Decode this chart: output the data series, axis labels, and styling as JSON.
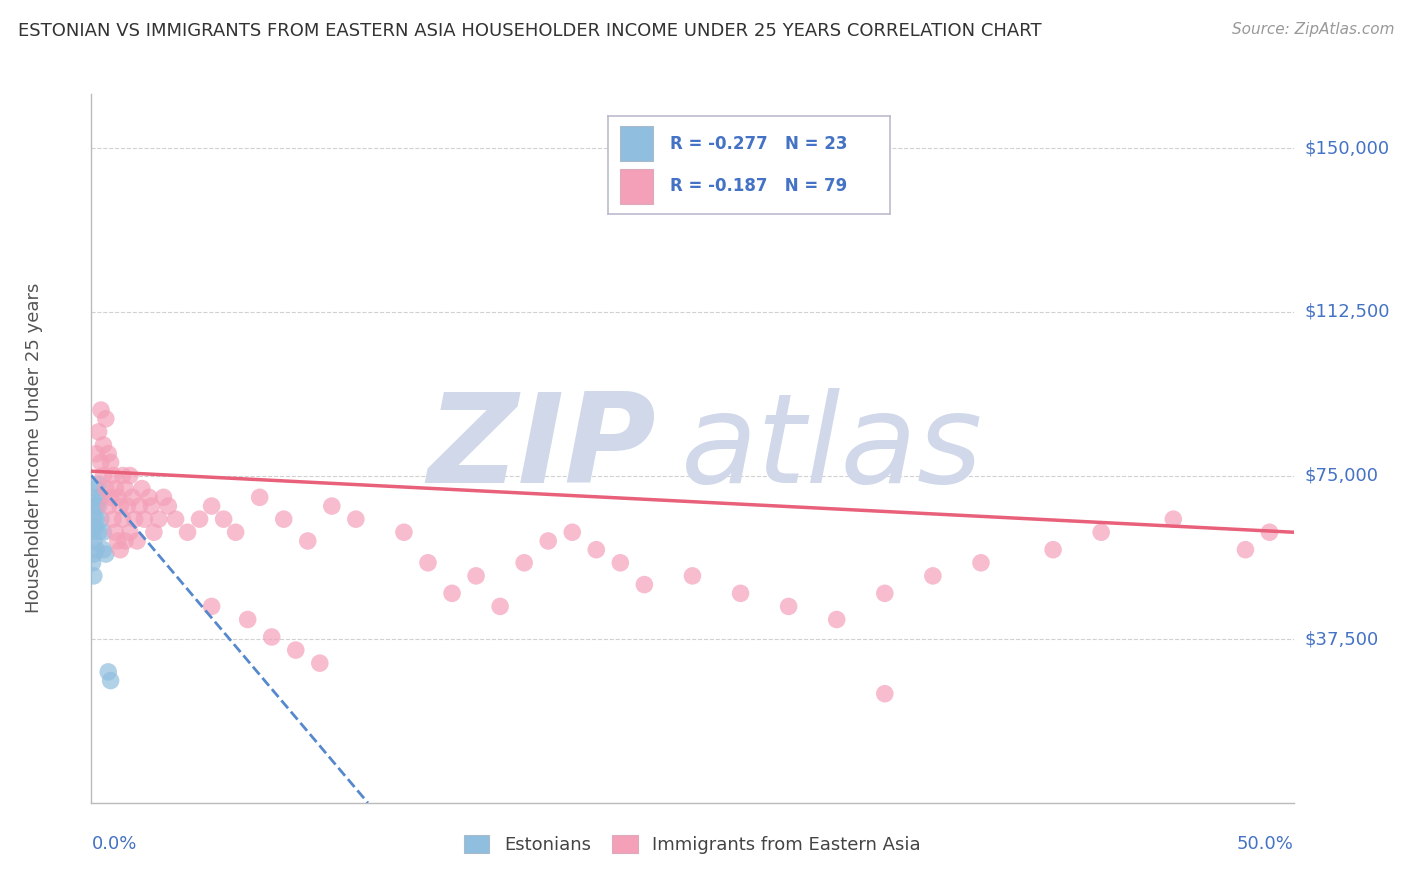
{
  "title": "ESTONIAN VS IMMIGRANTS FROM EASTERN ASIA HOUSEHOLDER INCOME UNDER 25 YEARS CORRELATION CHART",
  "source": "Source: ZipAtlas.com",
  "ylabel": "Householder Income Under 25 years",
  "xlim": [
    0.0,
    0.5
  ],
  "ylim": [
    0,
    162500
  ],
  "yticks": [
    0,
    37500,
    75000,
    112500,
    150000
  ],
  "ytick_labels": [
    "",
    "$37,500",
    "$75,000",
    "$112,500",
    "$150,000"
  ],
  "legend_r1": "R = -0.277   N = 23",
  "legend_r2": "R = -0.187   N = 79",
  "estonians_x": [
    0.0005,
    0.0005,
    0.001,
    0.001,
    0.001,
    0.001,
    0.0015,
    0.0015,
    0.002,
    0.002,
    0.002,
    0.002,
    0.0025,
    0.003,
    0.003,
    0.003,
    0.004,
    0.004,
    0.005,
    0.005,
    0.006,
    0.007,
    0.008
  ],
  "estonians_y": [
    62000,
    55000,
    65000,
    60000,
    57000,
    52000,
    68000,
    63000,
    72000,
    68000,
    65000,
    58000,
    70000,
    73000,
    68000,
    62000,
    70000,
    65000,
    62000,
    58000,
    57000,
    30000,
    28000
  ],
  "immigrants_x": [
    0.002,
    0.003,
    0.004,
    0.004,
    0.005,
    0.005,
    0.006,
    0.006,
    0.007,
    0.007,
    0.008,
    0.008,
    0.009,
    0.009,
    0.01,
    0.01,
    0.011,
    0.011,
    0.012,
    0.012,
    0.013,
    0.013,
    0.014,
    0.014,
    0.015,
    0.016,
    0.016,
    0.017,
    0.018,
    0.019,
    0.02,
    0.021,
    0.022,
    0.024,
    0.025,
    0.026,
    0.028,
    0.03,
    0.032,
    0.035,
    0.04,
    0.045,
    0.05,
    0.055,
    0.06,
    0.07,
    0.08,
    0.09,
    0.1,
    0.11,
    0.13,
    0.14,
    0.15,
    0.16,
    0.17,
    0.18,
    0.19,
    0.2,
    0.21,
    0.22,
    0.23,
    0.25,
    0.27,
    0.29,
    0.31,
    0.33,
    0.35,
    0.37,
    0.4,
    0.42,
    0.45,
    0.48,
    0.49,
    0.05,
    0.065,
    0.075,
    0.085,
    0.095,
    0.33
  ],
  "immigrants_y": [
    80000,
    85000,
    90000,
    78000,
    82000,
    75000,
    88000,
    72000,
    80000,
    68000,
    78000,
    70000,
    75000,
    65000,
    72000,
    62000,
    70000,
    60000,
    68000,
    58000,
    75000,
    65000,
    72000,
    60000,
    68000,
    75000,
    62000,
    70000,
    65000,
    60000,
    68000,
    72000,
    65000,
    70000,
    68000,
    62000,
    65000,
    70000,
    68000,
    65000,
    62000,
    65000,
    68000,
    65000,
    62000,
    70000,
    65000,
    60000,
    68000,
    65000,
    62000,
    55000,
    48000,
    52000,
    45000,
    55000,
    60000,
    62000,
    58000,
    55000,
    50000,
    52000,
    48000,
    45000,
    42000,
    48000,
    52000,
    55000,
    58000,
    62000,
    65000,
    58000,
    62000,
    45000,
    42000,
    38000,
    35000,
    32000,
    25000
  ],
  "estonian_line_x": [
    0.0,
    0.115
  ],
  "estonian_line_y": [
    75000,
    0
  ],
  "immigrant_line_x": [
    0.0,
    0.5
  ],
  "immigrant_line_y": [
    76000,
    62000
  ],
  "scatter_blue": "#90bede",
  "scatter_pink": "#f4a0b8",
  "line_blue": "#5588cc",
  "line_pink": "#e8607a",
  "grid_color": "#cccccc",
  "background_color": "#ffffff",
  "watermark": "ZIPatlas",
  "watermark_color": "#d0d8ea",
  "title_color": "#333333",
  "source_color": "#999999",
  "axis_label_color": "#555555",
  "tick_color": "#4472c4",
  "legend_border_color": "#aaaacc"
}
